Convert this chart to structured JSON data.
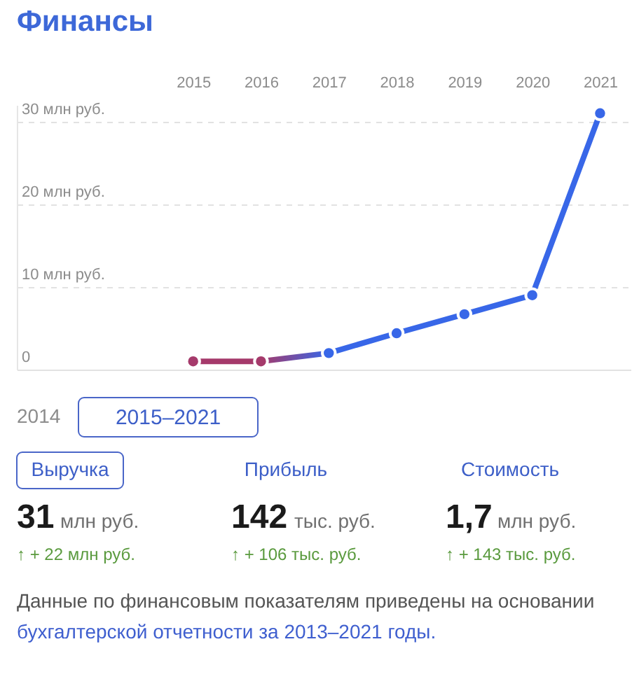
{
  "chart_data": {
    "type": "line",
    "title": "Финансы",
    "x": [
      2015,
      2016,
      2017,
      2018,
      2019,
      2020,
      2021
    ],
    "series": [
      {
        "colors": [
          "#a53a6b",
          "#a53a6b",
          "#3867e8",
          "#3867e8",
          "#3867e8",
          "#3867e8",
          "#3867e8"
        ],
        "values": [
          1,
          1,
          2,
          4.4,
          6.7,
          9,
          31
        ]
      }
    ],
    "xlim": [
      2012.4,
      2021.45
    ],
    "xticks": [
      2015,
      2016,
      2017,
      2018,
      2019,
      2020,
      2021
    ],
    "ylim": [
      0,
      32
    ],
    "yticks": [
      0,
      {
        "value": 10,
        "label": "10 млн руб."
      },
      {
        "value": 20,
        "label": "20 млн руб."
      },
      {
        "value": 30,
        "label": "30 млн руб."
      }
    ],
    "grid": "y",
    "marker": "circle",
    "annotations": [
      "2014",
      "2015–2021",
      "Выручка",
      "Прибыль",
      "Стоимость",
      "31",
      "млн руб.",
      "142",
      "тыс. руб.",
      "1,7",
      "млн руб.",
      "↑ + 22 млн руб.",
      "↑ + 106 тыс. руб.",
      "↑ + 143 тыс. руб.",
      "Данные по финансовым показателям приведены на основании",
      "бухгалтерской отчетности за 2013–2021 годы."
    ]
  }
}
